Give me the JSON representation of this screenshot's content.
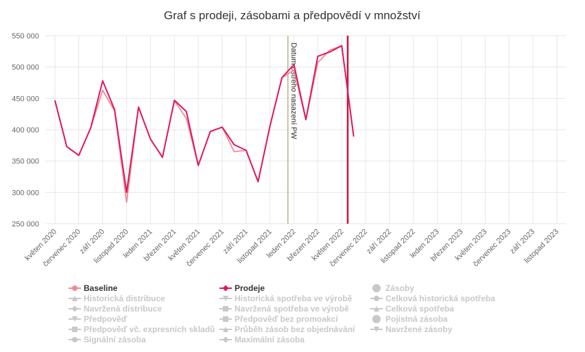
{
  "chart_data": {
    "type": "line",
    "title": "Graf s prodeji, zásobami a předpovědí v množství",
    "ylim": [
      250000,
      550000
    ],
    "y_ticks": [
      250000,
      300000,
      350000,
      400000,
      450000,
      500000,
      550000
    ],
    "y_tick_labels": [
      "250 000",
      "300 000",
      "350 000",
      "400 000",
      "450 000",
      "500 000",
      "550 000"
    ],
    "x_start": "2020-05",
    "x_tick_labels": [
      "květen 2020",
      "červenec 2020",
      "září 2020",
      "listopad 2020",
      "leden 2021",
      "březen 2021",
      "květen 2021",
      "červenec 2021",
      "září 2021",
      "listopad 2021",
      "leden 2022",
      "březen 2022",
      "květen 2022",
      "červenec 2022",
      "září 2022",
      "listopad 2022",
      "leden 2023",
      "březen 2023",
      "květen 2023",
      "červenec 2023",
      "září 2023",
      "listopad 2023"
    ],
    "months": [
      "2020-05",
      "2020-06",
      "2020-07",
      "2020-08",
      "2020-09",
      "2020-10",
      "2020-11",
      "2020-12",
      "2021-01",
      "2021-02",
      "2021-03",
      "2021-04",
      "2021-05",
      "2021-06",
      "2021-07",
      "2021-08",
      "2021-09",
      "2021-10",
      "2021-11",
      "2021-12",
      "2022-01",
      "2022-02",
      "2022-03",
      "2022-04",
      "2022-05",
      "2022-06"
    ],
    "series": [
      {
        "name": "Baseline",
        "color": "#f28a94",
        "values": [
          447000,
          373000,
          359000,
          403000,
          463000,
          430000,
          284000,
          436000,
          385000,
          356000,
          446000,
          418000,
          343000,
          397000,
          404000,
          365000,
          367000,
          317000,
          406000,
          483000,
          495000,
          416000,
          507000,
          527000,
          534000,
          389000
        ]
      },
      {
        "name": "Prodeje",
        "color": "#e0175f",
        "values": [
          447000,
          373000,
          359000,
          403000,
          478000,
          432000,
          300000,
          436000,
          385000,
          356000,
          447000,
          429000,
          343000,
          397000,
          404000,
          376000,
          367000,
          317000,
          406000,
          483000,
          504000,
          416000,
          517000,
          524000,
          534000,
          389000
        ]
      }
    ],
    "annotations": [
      {
        "label": "Datum ostrého nasazení PW",
        "month": "2022-01",
        "color": "#9b8a3a"
      },
      {
        "label": "",
        "month": "2022-06",
        "color": "#d0103a"
      }
    ],
    "grid": true,
    "legend_position": "bottom"
  },
  "legend": {
    "columns": [
      [
        {
          "label": "Baseline",
          "active": true,
          "marker": "line-dot",
          "color": "#f28a94"
        },
        {
          "label": "Historická distribuce",
          "active": false,
          "marker": "triangle"
        },
        {
          "label": "Navržená distribuce",
          "active": false,
          "marker": "diamond"
        },
        {
          "label": "Předpověď",
          "active": false,
          "marker": "triangle-down"
        },
        {
          "label": "Předpověď vč. expresních skladů",
          "active": false,
          "marker": "square"
        },
        {
          "label": "Signální zásoba",
          "active": false,
          "marker": "dot"
        }
      ],
      [
        {
          "label": "Prodeje",
          "active": true,
          "marker": "line-diamond",
          "color": "#e0175f"
        },
        {
          "label": "Historická spotřeba ve výrobě",
          "active": false,
          "marker": "triangle-down"
        },
        {
          "label": "Navržená spotřeba ve výrobě",
          "active": false,
          "marker": "square"
        },
        {
          "label": "Předpověď bez promoakcí",
          "active": false,
          "marker": "square"
        },
        {
          "label": "Průběh zásob bez objednávání",
          "active": false,
          "marker": "triangle"
        },
        {
          "label": "Maximální zásoba",
          "active": false,
          "marker": "diamond"
        }
      ],
      [
        {
          "label": "Zásoby",
          "active": false,
          "marker": "big-dot"
        },
        {
          "label": "Celková historická spotřeba",
          "active": false,
          "marker": "dot"
        },
        {
          "label": "Celková spotřeba",
          "active": false,
          "marker": "triangle"
        },
        {
          "label": "Pojistná zásoba",
          "active": false,
          "marker": "big-dot"
        },
        {
          "label": "Navržené zásoby",
          "active": false,
          "marker": "triangle-down"
        }
      ]
    ],
    "inactive_color": "#c8c8c8"
  }
}
